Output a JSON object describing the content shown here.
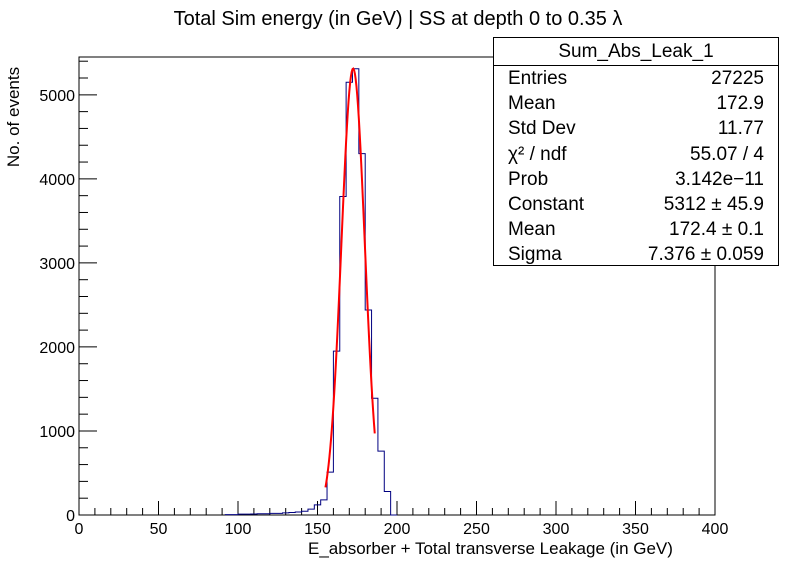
{
  "chart_data": {
    "type": "histogram",
    "title": "Total Sim energy (in GeV) | SS at depth 0 to 0.35 λ",
    "xlabel": "E_absorber + Total transverse Leakage (in GeV)",
    "ylabel": "No. of events",
    "xlim": [
      0,
      400
    ],
    "ylim": [
      0,
      5450
    ],
    "x_ticks": [
      "0",
      "50",
      "100",
      "150",
      "200",
      "250",
      "300",
      "350",
      "400"
    ],
    "y_ticks": [
      "0",
      "1000",
      "2000",
      "3000",
      "4000",
      "5000"
    ],
    "x_tick_values": [
      0,
      50,
      100,
      150,
      200,
      250,
      300,
      350,
      400
    ],
    "y_tick_values": [
      0,
      1000,
      2000,
      3000,
      4000,
      5000
    ],
    "bin_width": 4,
    "bins": [
      {
        "x": 92,
        "y": 5
      },
      {
        "x": 96,
        "y": 5
      },
      {
        "x": 100,
        "y": 10
      },
      {
        "x": 104,
        "y": 10
      },
      {
        "x": 108,
        "y": 12
      },
      {
        "x": 112,
        "y": 15
      },
      {
        "x": 116,
        "y": 15
      },
      {
        "x": 120,
        "y": 20
      },
      {
        "x": 124,
        "y": 20
      },
      {
        "x": 128,
        "y": 25
      },
      {
        "x": 132,
        "y": 30
      },
      {
        "x": 136,
        "y": 35
      },
      {
        "x": 140,
        "y": 45
      },
      {
        "x": 144,
        "y": 70
      },
      {
        "x": 148,
        "y": 120
      },
      {
        "x": 152,
        "y": 180
      },
      {
        "x": 156,
        "y": 510
      },
      {
        "x": 160,
        "y": 1950
      },
      {
        "x": 164,
        "y": 3790
      },
      {
        "x": 168,
        "y": 5150
      },
      {
        "x": 172,
        "y": 5310
      },
      {
        "x": 176,
        "y": 4300
      },
      {
        "x": 180,
        "y": 2440
      },
      {
        "x": 184,
        "y": 1390
      },
      {
        "x": 188,
        "y": 760
      },
      {
        "x": 192,
        "y": 280
      },
      {
        "x": 196,
        "y": 0
      }
    ],
    "series": [
      {
        "name": "histogram",
        "color": "#000080"
      },
      {
        "name": "gaussian fit",
        "color": "#ff0000",
        "constant": 5312,
        "mean": 172.4,
        "sigma": 7.376,
        "x_range": [
          155,
          186
        ]
      }
    ],
    "stats": {
      "name": "Sum_Abs_Leak_1",
      "rows": [
        {
          "key": "Entries",
          "value": "27225"
        },
        {
          "key": "Mean",
          "value": "172.9"
        },
        {
          "key": "Std Dev",
          "value": "11.77"
        },
        {
          "key": "χ² / ndf",
          "value": "55.07 / 4"
        },
        {
          "key": "Prob",
          "value": "3.142e−11"
        },
        {
          "key": "Constant",
          "value": "5312 ± 45.9"
        },
        {
          "key": "Mean",
          "value": "172.4 ± 0.1"
        },
        {
          "key": "Sigma",
          "value": "7.376 ± 0.059"
        }
      ]
    }
  }
}
